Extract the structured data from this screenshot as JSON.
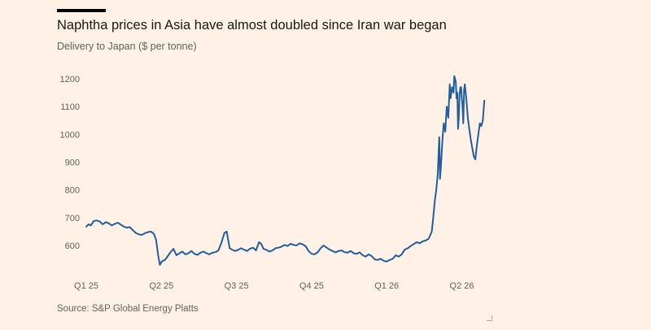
{
  "header": {
    "title": "Naphtha prices in Asia have almost doubled since Iran war began",
    "subtitle": "Delivery to Japan ($ per tonne)"
  },
  "footer": {
    "source": "Source: S&P Global Energy Platts"
  },
  "colors": {
    "background": "#fff1e5",
    "line": "#1f5f9f",
    "text": "#66605c"
  },
  "chart_data": {
    "type": "line",
    "title": "Naphtha prices in Asia have almost doubled since Iran war began",
    "subtitle": "Delivery to Japan ($ per tonne)",
    "xlabel": "",
    "ylabel": "",
    "ylim": [
      520,
      1230
    ],
    "yticks": [
      600,
      700,
      800,
      900,
      1000,
      1100,
      1200
    ],
    "xticks": [
      "Q1 25",
      "Q2 25",
      "Q3 25",
      "Q4 25",
      "Q1 26",
      "Q2 26"
    ],
    "grid": false,
    "series": [
      {
        "color": "#1f5f9f",
        "points": [
          [
            0.0,
            668
          ],
          [
            0.03,
            676
          ],
          [
            0.06,
            672
          ],
          [
            0.1,
            688
          ],
          [
            0.14,
            690
          ],
          [
            0.18,
            686
          ],
          [
            0.22,
            676
          ],
          [
            0.26,
            684
          ],
          [
            0.3,
            680
          ],
          [
            0.34,
            672
          ],
          [
            0.38,
            678
          ],
          [
            0.42,
            682
          ],
          [
            0.46,
            675
          ],
          [
            0.5,
            668
          ],
          [
            0.54,
            664
          ],
          [
            0.58,
            666
          ],
          [
            0.62,
            655
          ],
          [
            0.66,
            645
          ],
          [
            0.7,
            640
          ],
          [
            0.74,
            638
          ],
          [
            0.78,
            644
          ],
          [
            0.82,
            648
          ],
          [
            0.86,
            650
          ],
          [
            0.9,
            642
          ],
          [
            0.93,
            620
          ],
          [
            0.96,
            560
          ],
          [
            0.98,
            530
          ],
          [
            1.0,
            540
          ],
          [
            1.02,
            545
          ],
          [
            1.05,
            548
          ],
          [
            1.08,
            560
          ],
          [
            1.12,
            575
          ],
          [
            1.16,
            588
          ],
          [
            1.2,
            565
          ],
          [
            1.24,
            572
          ],
          [
            1.28,
            578
          ],
          [
            1.32,
            568
          ],
          [
            1.36,
            572
          ],
          [
            1.4,
            580
          ],
          [
            1.44,
            570
          ],
          [
            1.48,
            566
          ],
          [
            1.52,
            574
          ],
          [
            1.56,
            578
          ],
          [
            1.6,
            572
          ],
          [
            1.64,
            568
          ],
          [
            1.68,
            574
          ],
          [
            1.72,
            576
          ],
          [
            1.76,
            582
          ],
          [
            1.8,
            610
          ],
          [
            1.84,
            645
          ],
          [
            1.87,
            650
          ],
          [
            1.89,
            620
          ],
          [
            1.91,
            590
          ],
          [
            1.94,
            585
          ],
          [
            1.98,
            580
          ],
          [
            2.02,
            584
          ],
          [
            2.06,
            590
          ],
          [
            2.1,
            585
          ],
          [
            2.14,
            580
          ],
          [
            2.18,
            588
          ],
          [
            2.22,
            592
          ],
          [
            2.26,
            582
          ],
          [
            2.3,
            612
          ],
          [
            2.33,
            605
          ],
          [
            2.36,
            588
          ],
          [
            2.4,
            584
          ],
          [
            2.44,
            578
          ],
          [
            2.48,
            582
          ],
          [
            2.52,
            590
          ],
          [
            2.56,
            592
          ],
          [
            2.6,
            596
          ],
          [
            2.64,
            602
          ],
          [
            2.68,
            598
          ],
          [
            2.72,
            606
          ],
          [
            2.76,
            602
          ],
          [
            2.8,
            600
          ],
          [
            2.84,
            608
          ],
          [
            2.88,
            604
          ],
          [
            2.92,
            598
          ],
          [
            2.96,
            580
          ],
          [
            3.0,
            570
          ],
          [
            3.04,
            568
          ],
          [
            3.08,
            575
          ],
          [
            3.12,
            590
          ],
          [
            3.16,
            600
          ],
          [
            3.2,
            592
          ],
          [
            3.24,
            585
          ],
          [
            3.28,
            580
          ],
          [
            3.32,
            575
          ],
          [
            3.36,
            580
          ],
          [
            3.4,
            582
          ],
          [
            3.44,
            576
          ],
          [
            3.48,
            574
          ],
          [
            3.52,
            580
          ],
          [
            3.56,
            572
          ],
          [
            3.6,
            570
          ],
          [
            3.64,
            575
          ],
          [
            3.68,
            565
          ],
          [
            3.72,
            560
          ],
          [
            3.76,
            568
          ],
          [
            3.8,
            562
          ],
          [
            3.84,
            550
          ],
          [
            3.88,
            548
          ],
          [
            3.92,
            552
          ],
          [
            3.96,
            545
          ],
          [
            4.0,
            542
          ],
          [
            4.04,
            548
          ],
          [
            4.08,
            552
          ],
          [
            4.12,
            565
          ],
          [
            4.16,
            560
          ],
          [
            4.2,
            568
          ],
          [
            4.24,
            585
          ],
          [
            4.28,
            590
          ],
          [
            4.32,
            598
          ],
          [
            4.36,
            605
          ],
          [
            4.4,
            612
          ],
          [
            4.44,
            608
          ],
          [
            4.48,
            615
          ],
          [
            4.52,
            618
          ],
          [
            4.56,
            625
          ],
          [
            4.6,
            650
          ],
          [
            4.62,
            700
          ],
          [
            4.64,
            760
          ],
          [
            4.66,
            800
          ],
          [
            4.68,
            860
          ],
          [
            4.7,
            990
          ],
          [
            4.71,
            840
          ],
          [
            4.72,
            880
          ],
          [
            4.74,
            970
          ],
          [
            4.76,
            1040
          ],
          [
            4.78,
            1010
          ],
          [
            4.8,
            1100
          ],
          [
            4.82,
            1060
          ],
          [
            4.84,
            1180
          ],
          [
            4.85,
            1130
          ],
          [
            4.87,
            1170
          ],
          [
            4.89,
            1150
          ],
          [
            4.9,
            1210
          ],
          [
            4.92,
            1190
          ],
          [
            4.93,
            1130
          ],
          [
            4.94,
            1150
          ],
          [
            4.95,
            1020
          ],
          [
            4.96,
            1060
          ],
          [
            4.97,
            1140
          ],
          [
            4.98,
            1170
          ],
          [
            4.99,
            1170
          ],
          [
            5.0,
            1130
          ],
          [
            5.01,
            1100
          ],
          [
            5.02,
            1040
          ],
          [
            5.03,
            1160
          ],
          [
            5.04,
            1180
          ],
          [
            5.06,
            1130
          ],
          [
            5.08,
            1060
          ],
          [
            5.1,
            1020
          ],
          [
            5.12,
            980
          ],
          [
            5.14,
            950
          ],
          [
            5.16,
            920
          ],
          [
            5.18,
            910
          ],
          [
            5.2,
            960
          ],
          [
            5.22,
            1000
          ],
          [
            5.24,
            1040
          ],
          [
            5.26,
            1030
          ],
          [
            5.28,
            1050
          ],
          [
            5.3,
            1122
          ]
        ]
      }
    ]
  }
}
